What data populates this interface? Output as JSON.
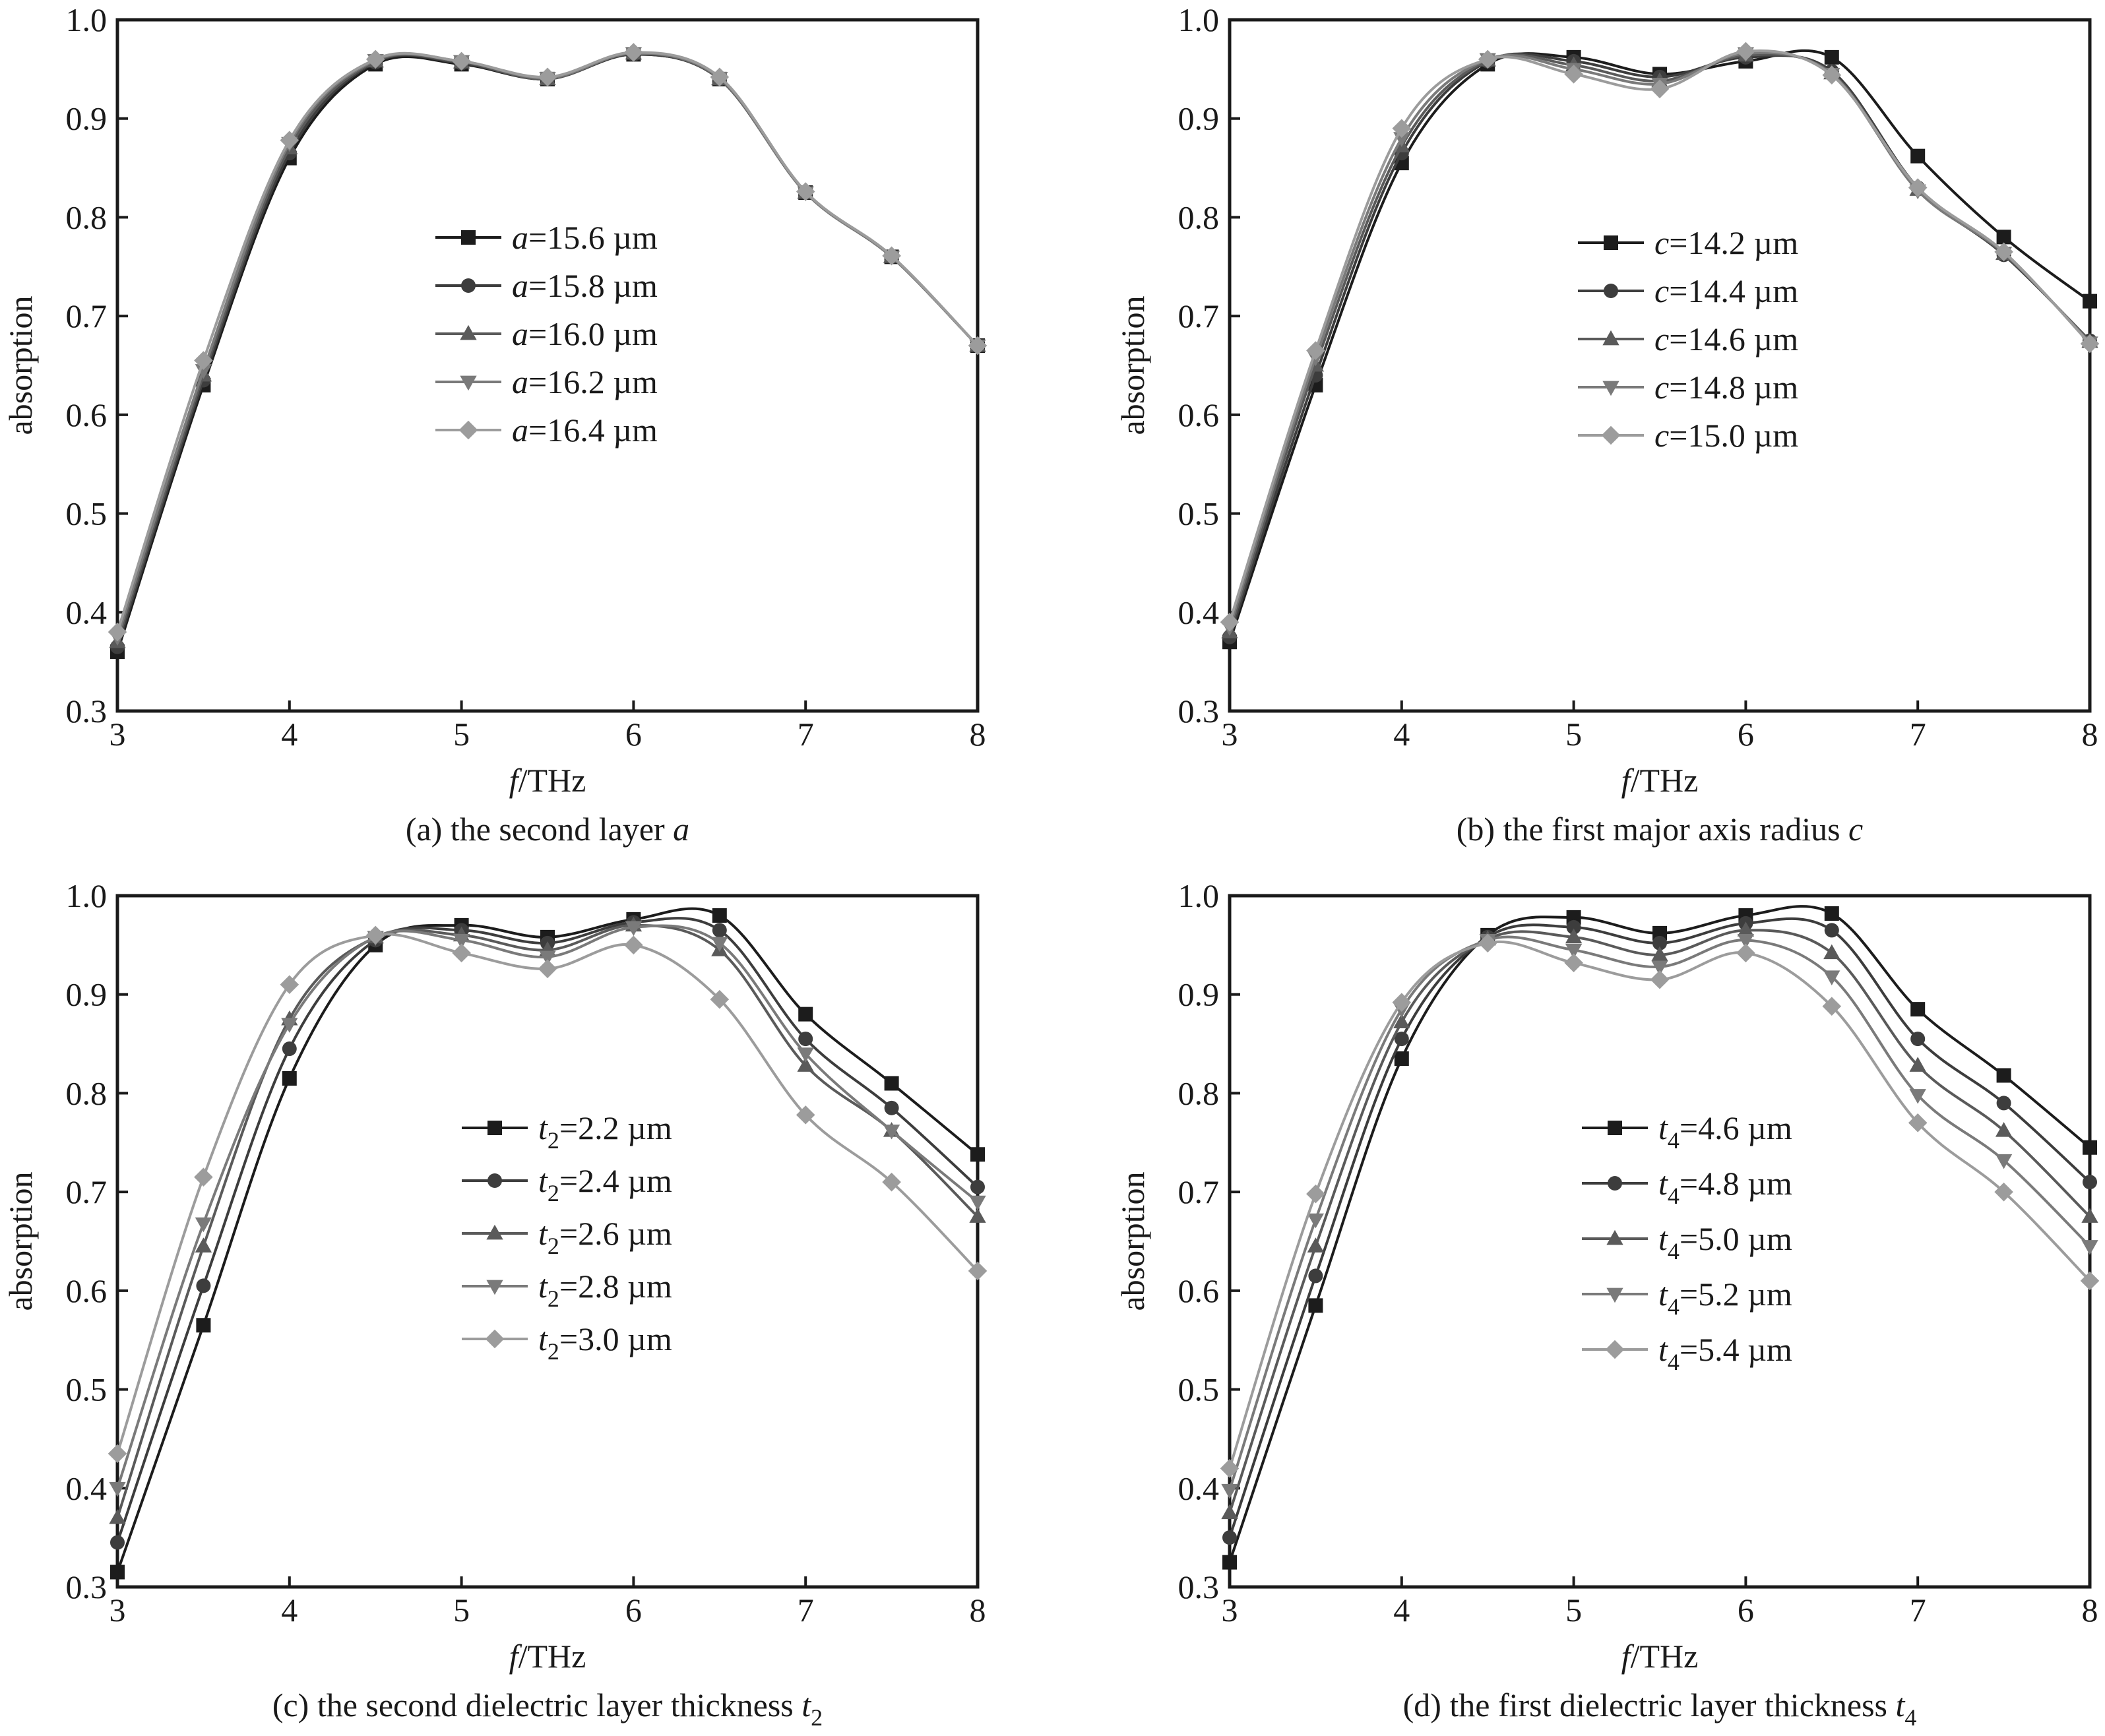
{
  "figure": {
    "charts": [
      {
        "id": "a",
        "caption": {
          "main": "(a) the second layer ",
          "param": "a",
          "sub": ""
        },
        "legend": {
          "prefix": "a",
          "sub": "",
          "unit": " µm"
        }
      },
      {
        "id": "b",
        "caption": {
          "main": "(b) the first major axis radius ",
          "param": "c",
          "sub": ""
        },
        "legend": {
          "prefix": "c",
          "sub": "",
          "unit": " µm"
        }
      },
      {
        "id": "c",
        "caption": {
          "main": "(c) the second dielectric layer thickness ",
          "param": "t",
          "sub": "2"
        },
        "legend": {
          "prefix": "t",
          "sub": "2",
          "unit": " µm"
        }
      },
      {
        "id": "d",
        "caption": {
          "main": "(d) the first dielectric layer thickness ",
          "param": "t",
          "sub": "4"
        },
        "legend": {
          "prefix": "t",
          "sub": "4",
          "unit": " µm"
        }
      }
    ],
    "axis": {
      "xlabel_italic": "f",
      "xlabel_rest": "/THz",
      "ylabel": "absorption"
    },
    "colors": {
      "series": [
        "#1c1c1c",
        "#3d3d3d",
        "#5a5a5a",
        "#7a7a7a",
        "#9c9c9c"
      ],
      "axes": "#1a1a1a"
    },
    "markers": [
      "square",
      "circle",
      "triangle-up",
      "triangle-down",
      "diamond"
    ]
  },
  "chart_data": [
    {
      "type": "line",
      "xlabel": "f/THz",
      "ylabel": "absorption",
      "xlim": [
        3,
        8
      ],
      "ylim": [
        0.3,
        1.0
      ],
      "xticks": [
        3,
        4,
        5,
        6,
        7,
        8
      ],
      "yticks": [
        0.3,
        0.4,
        0.5,
        0.6,
        0.7,
        0.8,
        0.9,
        1.0
      ],
      "legend_position": "center",
      "x": [
        3,
        3.5,
        4,
        4.5,
        5,
        5.5,
        6,
        6.5,
        7,
        7.5,
        8
      ],
      "series": [
        {
          "name": "15.6",
          "values": [
            0.36,
            0.63,
            0.86,
            0.955,
            0.955,
            0.94,
            0.965,
            0.94,
            0.825,
            0.76,
            0.67
          ]
        },
        {
          "name": "15.8",
          "values": [
            0.365,
            0.635,
            0.865,
            0.957,
            0.956,
            0.94,
            0.965,
            0.94,
            0.825,
            0.76,
            0.67
          ]
        },
        {
          "name": "16.0",
          "values": [
            0.37,
            0.64,
            0.87,
            0.958,
            0.957,
            0.94,
            0.966,
            0.94,
            0.825,
            0.76,
            0.67
          ]
        },
        {
          "name": "16.2",
          "values": [
            0.375,
            0.645,
            0.875,
            0.959,
            0.958,
            0.941,
            0.966,
            0.941,
            0.825,
            0.76,
            0.67
          ]
        },
        {
          "name": "16.4",
          "values": [
            0.38,
            0.655,
            0.878,
            0.96,
            0.958,
            0.942,
            0.967,
            0.942,
            0.826,
            0.761,
            0.67
          ]
        }
      ]
    },
    {
      "type": "line",
      "xlabel": "f/THz",
      "ylabel": "absorption",
      "xlim": [
        3,
        8
      ],
      "ylim": [
        0.3,
        1.0
      ],
      "xticks": [
        3,
        4,
        5,
        6,
        7,
        8
      ],
      "yticks": [
        0.3,
        0.4,
        0.5,
        0.6,
        0.7,
        0.8,
        0.9,
        1.0
      ],
      "legend_position": "right",
      "x": [
        3,
        3.5,
        4,
        4.5,
        5,
        5.5,
        6,
        6.5,
        7,
        7.5,
        8
      ],
      "series": [
        {
          "name": "14.2",
          "values": [
            0.37,
            0.63,
            0.855,
            0.955,
            0.962,
            0.945,
            0.958,
            0.962,
            0.862,
            0.78,
            0.715
          ]
        },
        {
          "name": "14.4",
          "values": [
            0.375,
            0.64,
            0.865,
            0.958,
            0.958,
            0.942,
            0.962,
            0.948,
            0.83,
            0.762,
            0.675
          ]
        },
        {
          "name": "14.6",
          "values": [
            0.38,
            0.65,
            0.872,
            0.959,
            0.954,
            0.938,
            0.964,
            0.946,
            0.828,
            0.763,
            0.674
          ]
        },
        {
          "name": "14.8",
          "values": [
            0.385,
            0.658,
            0.88,
            0.96,
            0.95,
            0.935,
            0.966,
            0.945,
            0.827,
            0.764,
            0.673
          ]
        },
        {
          "name": "15.0",
          "values": [
            0.39,
            0.665,
            0.89,
            0.96,
            0.945,
            0.93,
            0.968,
            0.944,
            0.83,
            0.765,
            0.672
          ]
        }
      ]
    },
    {
      "type": "line",
      "xlabel": "f/THz",
      "ylabel": "absorption",
      "xlim": [
        3,
        8
      ],
      "ylim": [
        0.3,
        1.0
      ],
      "xticks": [
        3,
        4,
        5,
        6,
        7,
        8
      ],
      "yticks": [
        0.3,
        0.4,
        0.5,
        0.6,
        0.7,
        0.8,
        0.9,
        1.0
      ],
      "legend_position": "center-right",
      "x": [
        3,
        3.5,
        4,
        4.5,
        5,
        5.5,
        6,
        6.5,
        7,
        7.5,
        8
      ],
      "series": [
        {
          "name": "2.2",
          "values": [
            0.315,
            0.565,
            0.815,
            0.95,
            0.97,
            0.958,
            0.976,
            0.98,
            0.88,
            0.81,
            0.738
          ]
        },
        {
          "name": "2.4",
          "values": [
            0.345,
            0.605,
            0.845,
            0.955,
            0.965,
            0.952,
            0.973,
            0.965,
            0.855,
            0.785,
            0.705
          ]
        },
        {
          "name": "2.6",
          "values": [
            0.37,
            0.645,
            0.875,
            0.958,
            0.96,
            0.945,
            0.97,
            0.945,
            0.828,
            0.762,
            0.675
          ]
        },
        {
          "name": "2.8",
          "values": [
            0.4,
            0.668,
            0.87,
            0.958,
            0.955,
            0.938,
            0.968,
            0.952,
            0.84,
            0.762,
            0.69
          ]
        },
        {
          "name": "3.0",
          "values": [
            0.435,
            0.715,
            0.91,
            0.96,
            0.942,
            0.926,
            0.95,
            0.895,
            0.778,
            0.71,
            0.62
          ]
        }
      ]
    },
    {
      "type": "line",
      "xlabel": "f/THz",
      "ylabel": "absorption",
      "xlim": [
        3,
        8
      ],
      "ylim": [
        0.3,
        1.0
      ],
      "xticks": [
        3,
        4,
        5,
        6,
        7,
        8
      ],
      "yticks": [
        0.3,
        0.4,
        0.5,
        0.6,
        0.7,
        0.8,
        0.9,
        1.0
      ],
      "legend_position": "center-right",
      "x": [
        3,
        3.5,
        4,
        4.5,
        5,
        5.5,
        6,
        6.5,
        7,
        7.5,
        8
      ],
      "series": [
        {
          "name": "4.6",
          "values": [
            0.325,
            0.585,
            0.835,
            0.96,
            0.978,
            0.962,
            0.98,
            0.982,
            0.885,
            0.818,
            0.745
          ]
        },
        {
          "name": "4.8",
          "values": [
            0.35,
            0.615,
            0.855,
            0.958,
            0.968,
            0.952,
            0.972,
            0.965,
            0.855,
            0.79,
            0.71
          ]
        },
        {
          "name": "5.0",
          "values": [
            0.375,
            0.645,
            0.872,
            0.956,
            0.958,
            0.94,
            0.965,
            0.942,
            0.828,
            0.762,
            0.675
          ]
        },
        {
          "name": "5.2",
          "values": [
            0.398,
            0.672,
            0.885,
            0.955,
            0.945,
            0.928,
            0.955,
            0.918,
            0.798,
            0.732,
            0.645
          ]
        },
        {
          "name": "5.4",
          "values": [
            0.42,
            0.698,
            0.892,
            0.952,
            0.932,
            0.915,
            0.942,
            0.888,
            0.77,
            0.7,
            0.61
          ]
        }
      ]
    }
  ]
}
